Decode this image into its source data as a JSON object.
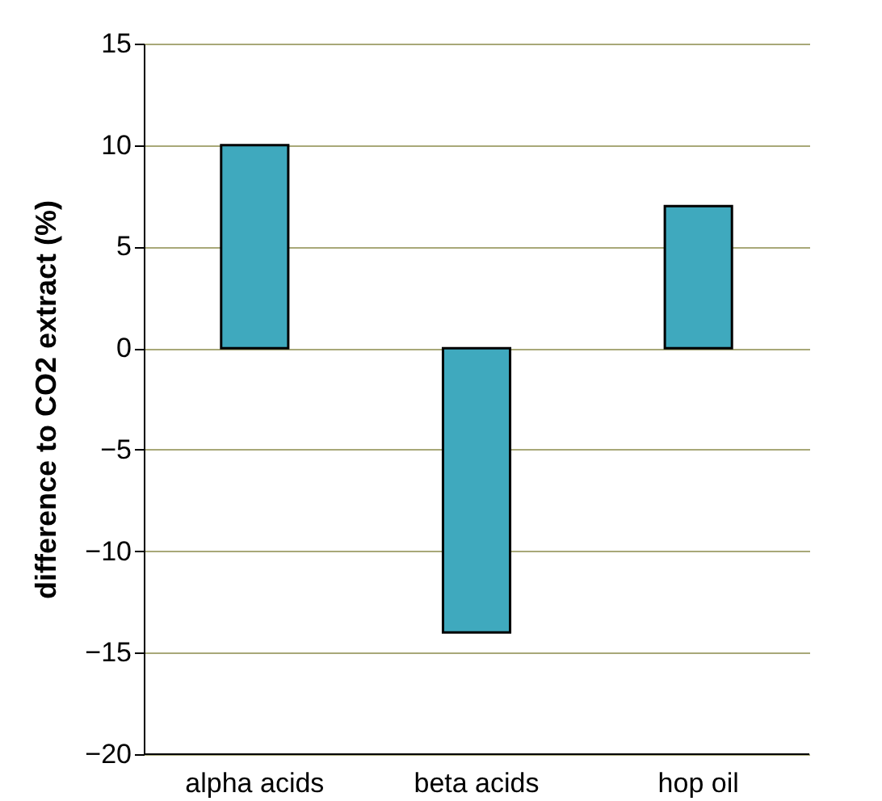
{
  "chart_data": {
    "type": "bar",
    "ylabel": "difference to CO2 extract (%)",
    "categories": [
      "alpha acids",
      "beta acids",
      "hop oil"
    ],
    "values": [
      10,
      -14,
      7
    ],
    "color": "#3fa9be",
    "ylim": [
      -20,
      15
    ],
    "yticks": [
      -20,
      -15,
      -10,
      -5,
      0,
      5,
      10,
      15
    ],
    "grid": "y"
  }
}
